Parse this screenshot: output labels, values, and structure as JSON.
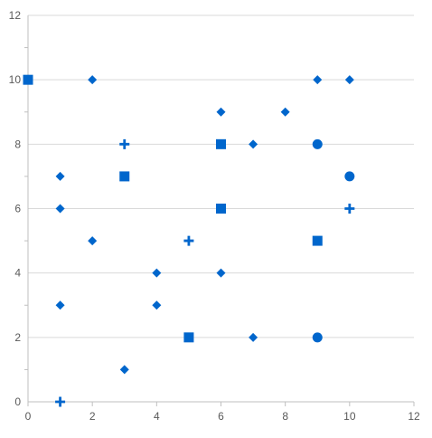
{
  "chart_data": {
    "type": "scatter",
    "title": "",
    "xlabel": "",
    "ylabel": "",
    "xlim": [
      0,
      12
    ],
    "ylim": [
      0,
      12
    ],
    "x_ticks": [
      "0",
      "2",
      "4",
      "6",
      "8",
      "10",
      "12"
    ],
    "y_ticks": [
      "0",
      "2",
      "4",
      "6",
      "8",
      "10",
      "12"
    ],
    "grid": "horizontal",
    "color": "#0066cc",
    "series": [
      {
        "marker": "diamond",
        "points": [
          {
            "x": 1,
            "y": 3
          },
          {
            "x": 1,
            "y": 6
          },
          {
            "x": 1,
            "y": 7
          },
          {
            "x": 2,
            "y": 5
          },
          {
            "x": 2,
            "y": 10
          },
          {
            "x": 3,
            "y": 1
          },
          {
            "x": 4,
            "y": 3
          },
          {
            "x": 4,
            "y": 4
          },
          {
            "x": 6,
            "y": 4
          },
          {
            "x": 6,
            "y": 9
          },
          {
            "x": 7,
            "y": 2
          },
          {
            "x": 7,
            "y": 8
          },
          {
            "x": 8,
            "y": 9
          },
          {
            "x": 9,
            "y": 10
          },
          {
            "x": 10,
            "y": 10
          }
        ]
      },
      {
        "marker": "square",
        "points": [
          {
            "x": 0,
            "y": 10
          },
          {
            "x": 3,
            "y": 7
          },
          {
            "x": 5,
            "y": 2
          },
          {
            "x": 6,
            "y": 6
          },
          {
            "x": 6,
            "y": 8
          },
          {
            "x": 9,
            "y": 5
          }
        ]
      },
      {
        "marker": "plus",
        "points": [
          {
            "x": 1,
            "y": 0
          },
          {
            "x": 3,
            "y": 8
          },
          {
            "x": 5,
            "y": 5
          },
          {
            "x": 10,
            "y": 6
          }
        ]
      },
      {
        "marker": "circle",
        "points": [
          {
            "x": 9,
            "y": 2
          },
          {
            "x": 9,
            "y": 8
          },
          {
            "x": 10,
            "y": 7
          }
        ]
      }
    ]
  }
}
